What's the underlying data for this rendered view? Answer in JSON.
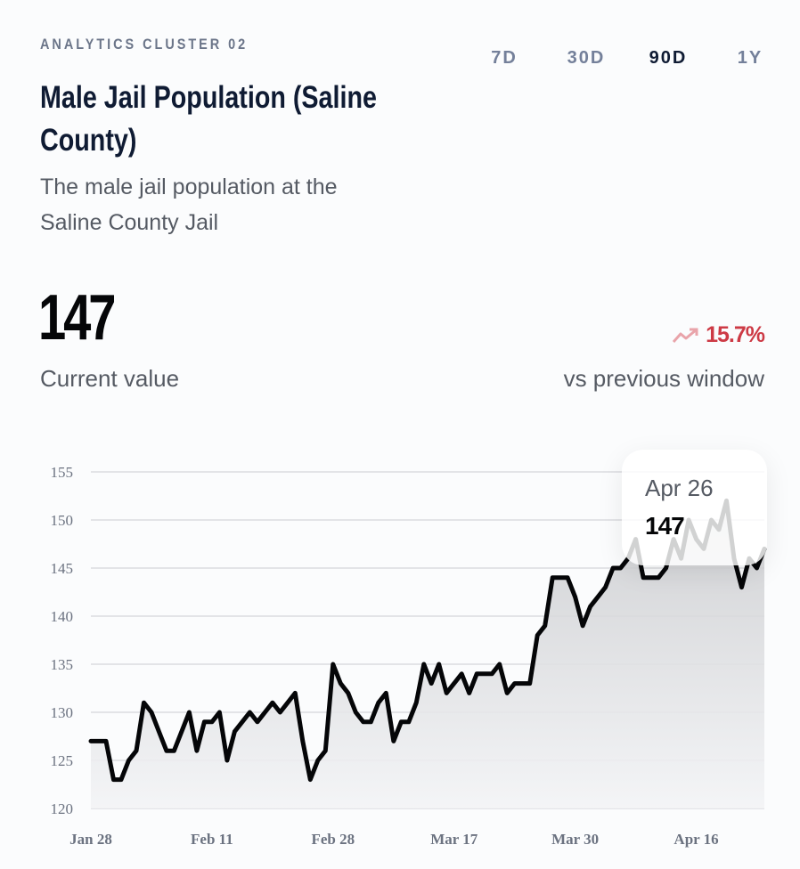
{
  "header": {
    "eyebrow": "ANALYTICS CLUSTER 02",
    "title_line1": "Male Jail Population (Saline",
    "title_line2": "County)",
    "subtitle_line1": "The male jail population at the",
    "subtitle_line2": "Saline County Jail"
  },
  "ranges": [
    {
      "label": "7D",
      "active": false
    },
    {
      "label": "30D",
      "active": false
    },
    {
      "label": "90D",
      "active": true
    },
    {
      "label": "1Y",
      "active": false
    }
  ],
  "kpi": {
    "value": "147",
    "value_label": "Current value",
    "change": "15.7%",
    "change_icon": "trending-up-icon",
    "change_label": "vs previous window",
    "change_color": "#cd3a45"
  },
  "tooltip": {
    "date": "Apr 26",
    "value": "147"
  },
  "chart_data": {
    "type": "area",
    "ylim": [
      120,
      155
    ],
    "yticks": [
      120,
      125,
      130,
      135,
      140,
      145,
      150,
      155
    ],
    "xtick_labels": [
      "Jan 28",
      "Feb 11",
      "Feb 28",
      "Mar 17",
      "Mar 30",
      "Apr 16"
    ],
    "grid": true,
    "line_color": "#050608",
    "values": [
      127,
      127,
      127,
      123,
      123,
      125,
      126,
      131,
      130,
      128,
      126,
      126,
      128,
      130,
      126,
      129,
      129,
      130,
      125,
      128,
      129,
      130,
      129,
      130,
      131,
      130,
      131,
      132,
      127,
      123,
      125,
      126,
      135,
      133,
      132,
      130,
      129,
      129,
      131,
      132,
      127,
      129,
      129,
      131,
      135,
      133,
      135,
      132,
      133,
      134,
      132,
      134,
      134,
      134,
      135,
      132,
      133,
      133,
      133,
      138,
      139,
      144,
      144,
      144,
      142,
      139,
      141,
      142,
      143,
      145,
      145,
      146,
      148,
      144,
      144,
      144,
      145,
      148,
      146,
      150,
      148,
      147,
      150,
      149,
      152,
      146,
      143,
      146,
      145,
      147
    ]
  }
}
